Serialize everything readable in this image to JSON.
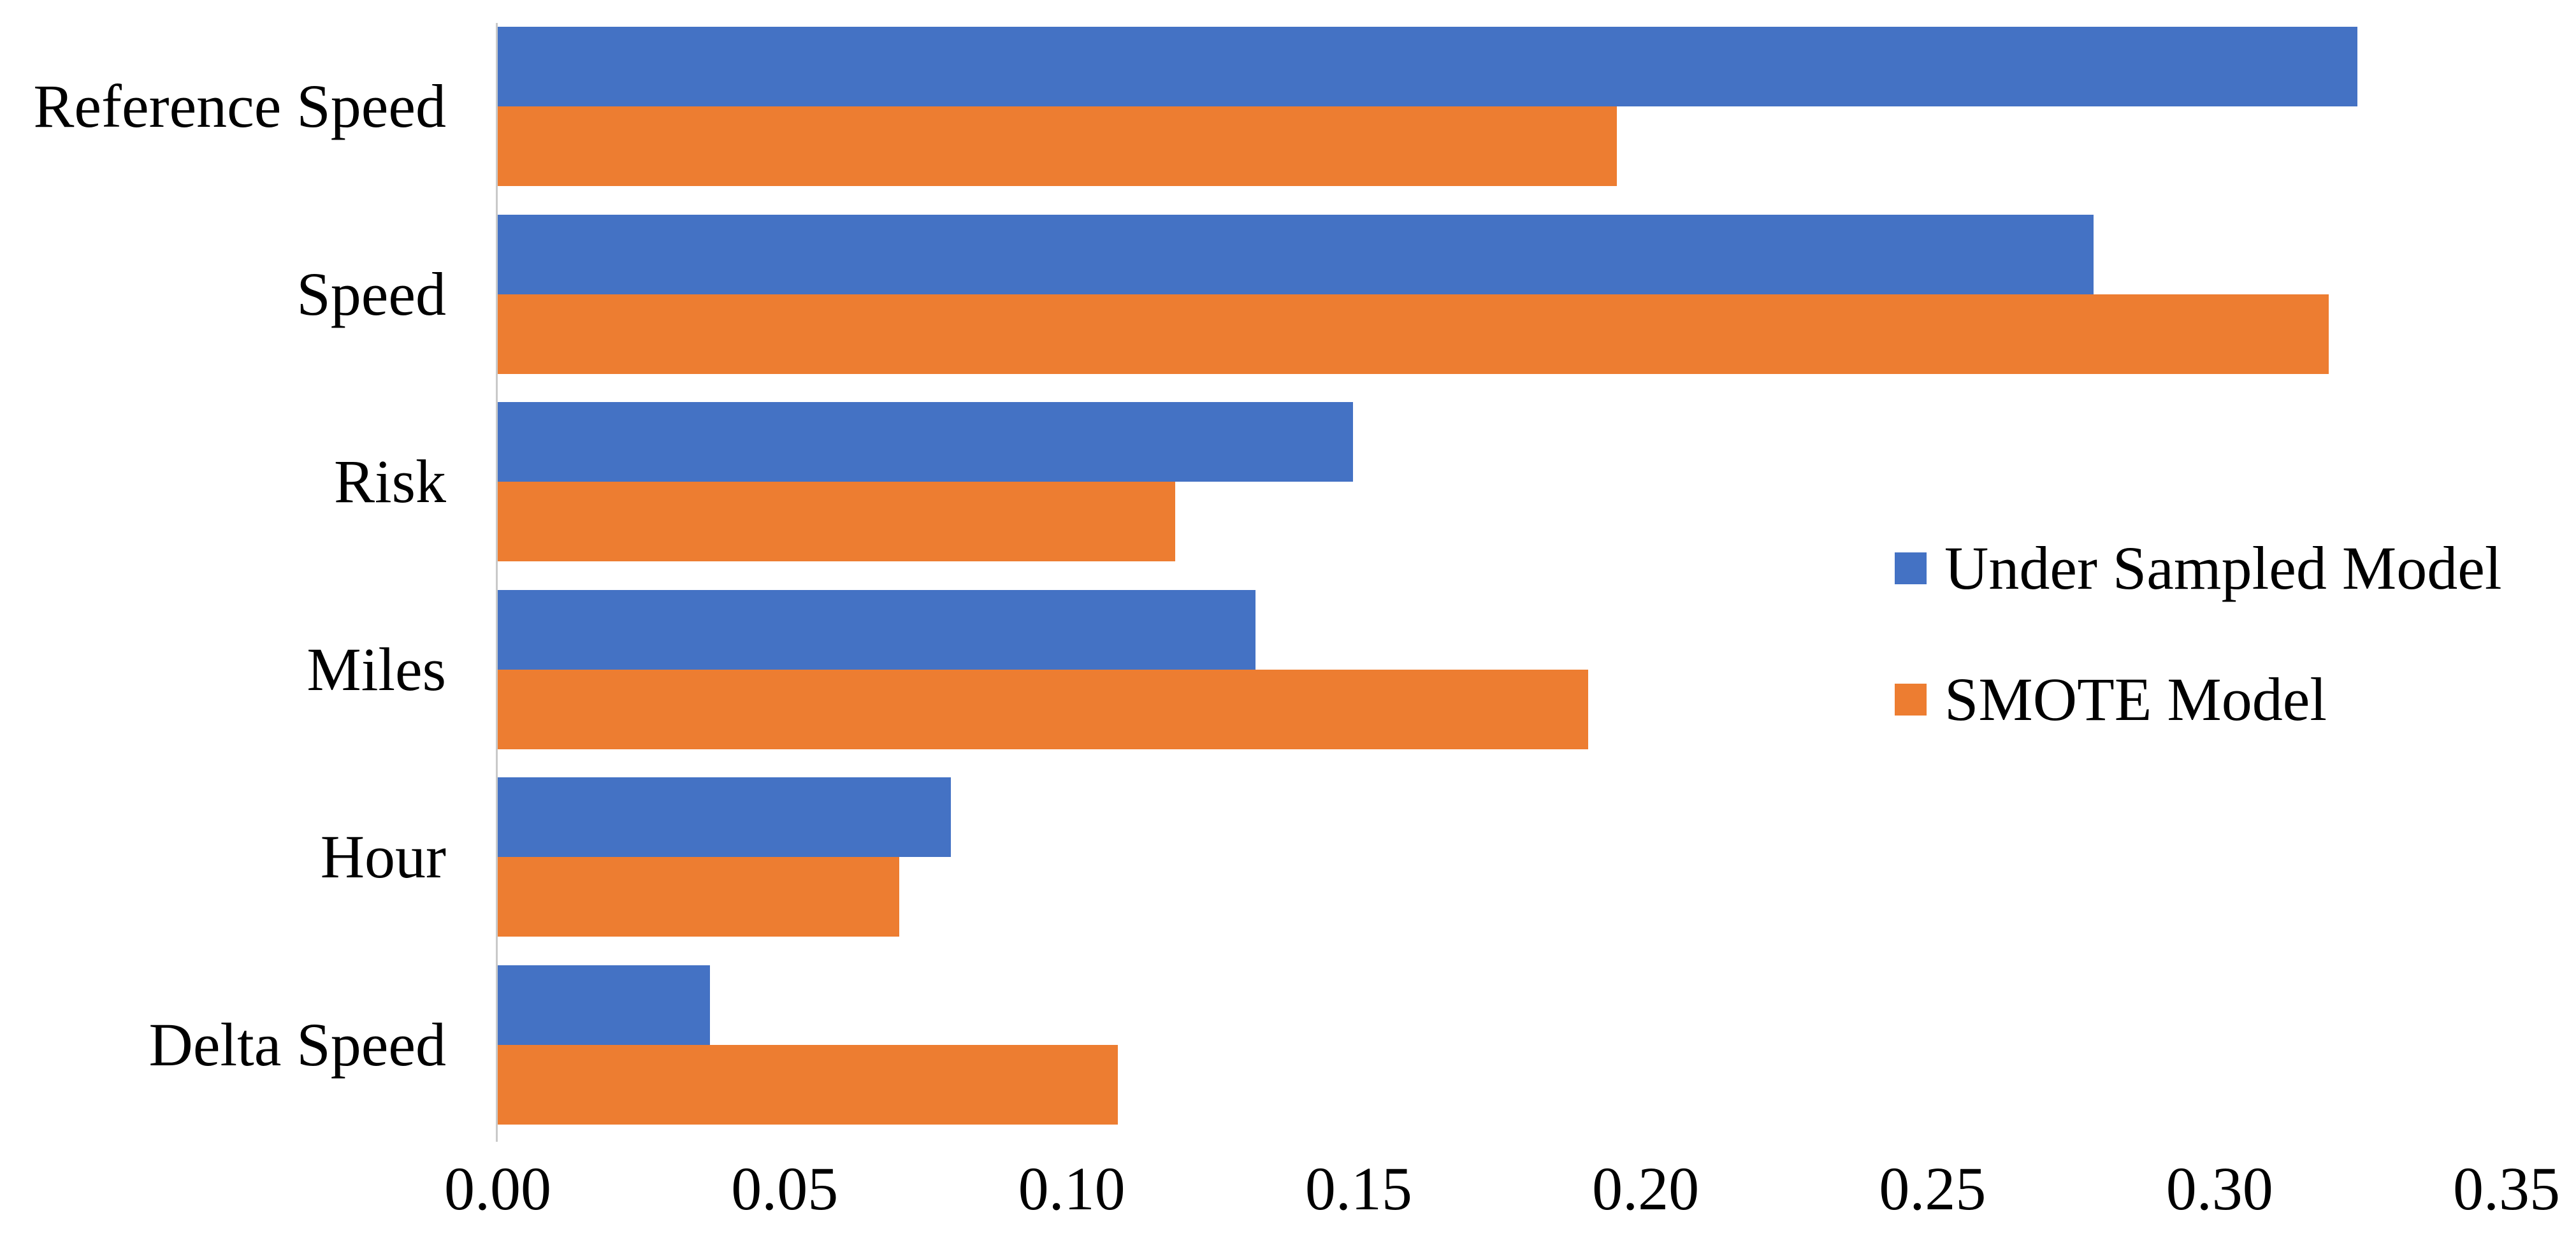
{
  "chart_data": {
    "type": "bar",
    "orientation": "horizontal",
    "title": "",
    "xlabel": "",
    "ylabel": "",
    "categories": [
      "Reference Speed",
      "Speed",
      "Risk",
      "Miles",
      "Hour",
      "Delta Speed"
    ],
    "series": [
      {
        "name": "Under Sampled Model",
        "color": "#4472C4",
        "values": [
          0.324,
          0.278,
          0.149,
          0.132,
          0.079,
          0.037
        ]
      },
      {
        "name": "SMOTE Model",
        "color": "#ED7D31",
        "values": [
          0.195,
          0.319,
          0.118,
          0.19,
          0.07,
          0.108
        ]
      }
    ],
    "x_ticks": [
      "0.00",
      "0.05",
      "0.10",
      "0.15",
      "0.20",
      "0.25",
      "0.30",
      "0.35"
    ],
    "xlim": [
      0,
      0.35
    ],
    "grid": false,
    "legend_position": "middle-right",
    "axis_line_color": "#C9C9C9",
    "text_color": "#000000",
    "background_color": "#FFFFFF"
  }
}
